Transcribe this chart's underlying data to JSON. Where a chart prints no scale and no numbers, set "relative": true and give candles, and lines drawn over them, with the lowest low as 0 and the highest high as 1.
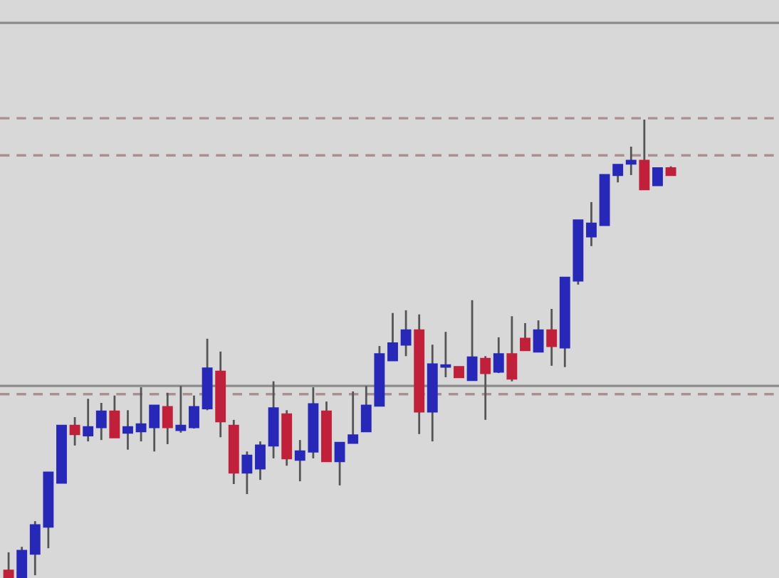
{
  "chart_data": {
    "type": "candlestick",
    "relative": true,
    "categories": [
      null,
      null,
      null,
      null,
      null,
      null,
      null,
      null,
      null,
      null,
      null,
      null,
      null,
      null,
      null,
      null,
      null,
      null,
      null,
      null,
      null,
      null,
      null,
      null,
      null,
      null,
      null,
      null,
      null,
      null,
      null,
      null,
      null,
      null,
      null,
      null,
      null,
      null,
      null,
      null,
      null,
      null,
      null,
      null,
      null,
      null,
      null,
      null,
      null,
      null,
      null
    ],
    "ohlc": [
      [
        0.016,
        0.056,
        0,
        0
      ],
      [
        0,
        0.068,
        0,
        0.059
      ],
      [
        0.053,
        0.124,
        0.006,
        0.115
      ],
      [
        0.112,
        0.23,
        0.065,
        0.23
      ],
      [
        0.208,
        0.332,
        0.208,
        0.332
      ],
      [
        0.332,
        0.351,
        0.289,
        0.314
      ],
      [
        0.311,
        0.391,
        0.298,
        0.329
      ],
      [
        0.329,
        0.382,
        0.301,
        0.363
      ],
      [
        0.363,
        0.398,
        0.307,
        0.307
      ],
      [
        0.317,
        0.366,
        0.28,
        0.329
      ],
      [
        0.32,
        0.416,
        0.298,
        0.335
      ],
      [
        0.329,
        0.376,
        0.276,
        0.376
      ],
      [
        0.373,
        0.404,
        0.292,
        0.329
      ],
      [
        0.323,
        0.419,
        0.317,
        0.332
      ],
      [
        0.329,
        0.398,
        0.326,
        0.373
      ],
      [
        0.37,
        0.522,
        0.366,
        0.457
      ],
      [
        0.45,
        0.494,
        0.307,
        0.342
      ],
      [
        0.332,
        0.345,
        0.205,
        0.23
      ],
      [
        0.23,
        0.276,
        0.183,
        0.267
      ],
      [
        0.239,
        0.298,
        0.214,
        0.289
      ],
      [
        0.289,
        0.429,
        0.261,
        0.37
      ],
      [
        0.357,
        0.366,
        0.245,
        0.261
      ],
      [
        0.258,
        0.301,
        0.211,
        0.276
      ],
      [
        0.276,
        0.416,
        0.261,
        0.379
      ],
      [
        0.363,
        0.385,
        0.255,
        0.255
      ],
      [
        0.255,
        0.295,
        0.202,
        0.295
      ],
      [
        0.295,
        0.407,
        0.295,
        0.311
      ],
      [
        0.32,
        0.419,
        0.32,
        0.376
      ],
      [
        0.376,
        0.506,
        0.376,
        0.488
      ],
      [
        0.475,
        0.578,
        0.475,
        0.512
      ],
      [
        0.509,
        0.584,
        0.484,
        0.54
      ],
      [
        0.54,
        0.575,
        0.314,
        0.363
      ],
      [
        0.363,
        0.509,
        0.298,
        0.466
      ],
      [
        0.461,
        0.537,
        0.438,
        0.464
      ],
      [
        0.46,
        0.46,
        0.438,
        0.438
      ],
      [
        0.432,
        0.606,
        0.432,
        0.481
      ],
      [
        0.478,
        0.484,
        0.345,
        0.447
      ],
      [
        0.45,
        0.525,
        0.447,
        0.488
      ],
      [
        0.488,
        0.571,
        0.429,
        0.435
      ],
      [
        0.522,
        0.556,
        0.497,
        0.497
      ],
      [
        0.494,
        0.562,
        0.494,
        0.54
      ],
      [
        0.54,
        0.587,
        0.463,
        0.506
      ],
      [
        0.503,
        0.655,
        0.46,
        0.655
      ],
      [
        0.649,
        0.78,
        0.64,
        0.78
      ],
      [
        0.745,
        0.82,
        0.724,
        0.773
      ],
      [
        0.77,
        0.879,
        0.77,
        0.879
      ],
      [
        0.879,
        0.901,
        0.863,
        0.901
      ],
      [
        0.904,
        0.941,
        0.879,
        0.91
      ],
      [
        0.91,
        1,
        0.848,
        0.848
      ],
      [
        0.857,
        0.894,
        0.857,
        0.894
      ],
      [
        0.894,
        0.898,
        0.879,
        0.879
      ]
    ],
    "colors": [
      "#c0203a",
      "#2828b8",
      "#2828b8",
      "#2828b8",
      "#2828b8",
      "#c0203a",
      "#2828b8",
      "#2828b8",
      "#c0203a",
      "#2828b8",
      "#2828b8",
      "#2828b8",
      "#c0203a",
      "#2828b8",
      "#2828b8",
      "#2828b8",
      "#c0203a",
      "#c0203a",
      "#2828b8",
      "#2828b8",
      "#2828b8",
      "#c0203a",
      "#2828b8",
      "#2828b8",
      "#c0203a",
      "#2828b8",
      "#2828b8",
      "#2828b8",
      "#2828b8",
      "#2828b8",
      "#2828b8",
      "#c0203a",
      "#2828b8",
      "#2828b8",
      "#c0203a",
      "#2828b8",
      "#c0203a",
      "#2828b8",
      "#c0203a",
      "#c0203a",
      "#2828b8",
      "#c0203a",
      "#2828b8",
      "#2828b8",
      "#2828b8",
      "#2828b8",
      "#2828b8",
      "#2828b8",
      "#c0203a",
      "#2828b8",
      "#c0203a"
    ],
    "ref_lines": [
      {
        "axis": "y",
        "value": 1.211,
        "color": "#8c8c8c",
        "line_style": "solid"
      },
      {
        "axis": "y",
        "value": 1.003,
        "color": "#a89090",
        "line_style": "dashed"
      },
      {
        "axis": "y",
        "value": 0.922,
        "color": "#a89090",
        "line_style": "dashed"
      },
      {
        "axis": "y",
        "value": 0.419,
        "color": "#8c8c8c",
        "line_style": "solid"
      },
      {
        "axis": "y",
        "value": 0.401,
        "color": "#a89090",
        "line_style": "dashed"
      }
    ]
  }
}
